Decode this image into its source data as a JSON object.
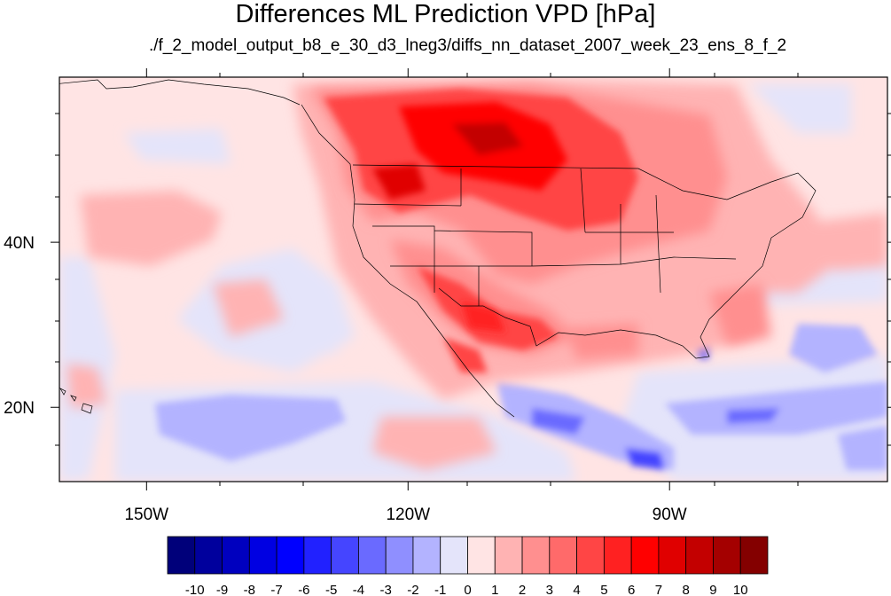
{
  "title": "Differences ML Prediction VPD [hPa]",
  "subtitle": "./f_2_model_output_b8_e_30_d3_lneg3/diffs_nn_dataset_2007_week_23_ens_8_f_2",
  "lat_labels": [
    {
      "value": 40,
      "label": "40N"
    },
    {
      "value": 20,
      "label": "20N"
    }
  ],
  "lon_labels": [
    {
      "value": -150,
      "label": "150W"
    },
    {
      "value": -120,
      "label": "120W"
    },
    {
      "value": -90,
      "label": "90W"
    }
  ],
  "extent": {
    "lon": [
      -160,
      -65
    ],
    "lat": [
      11,
      60
    ]
  },
  "colorbar": {
    "labels": [
      "-10",
      "-9",
      "-8",
      "-7",
      "-6",
      "-5",
      "-4",
      "-3",
      "-2",
      "-1",
      "0",
      "1",
      "2",
      "3",
      "4",
      "5",
      "6",
      "7",
      "8",
      "9",
      "10"
    ],
    "colors": [
      "#00007a",
      "#00009d",
      "#0000bf",
      "#0000e2",
      "#0000ff",
      "#2121ff",
      "#4545ff",
      "#6a6aff",
      "#8f8fff",
      "#b3b3ff",
      "#e4e4fa",
      "#ffe4e4",
      "#ffb3b3",
      "#ff8f8f",
      "#ff6a6a",
      "#ff4545",
      "#ff2121",
      "#ff0000",
      "#e00000",
      "#c30000",
      "#a40000",
      "#840000"
    ]
  }
}
